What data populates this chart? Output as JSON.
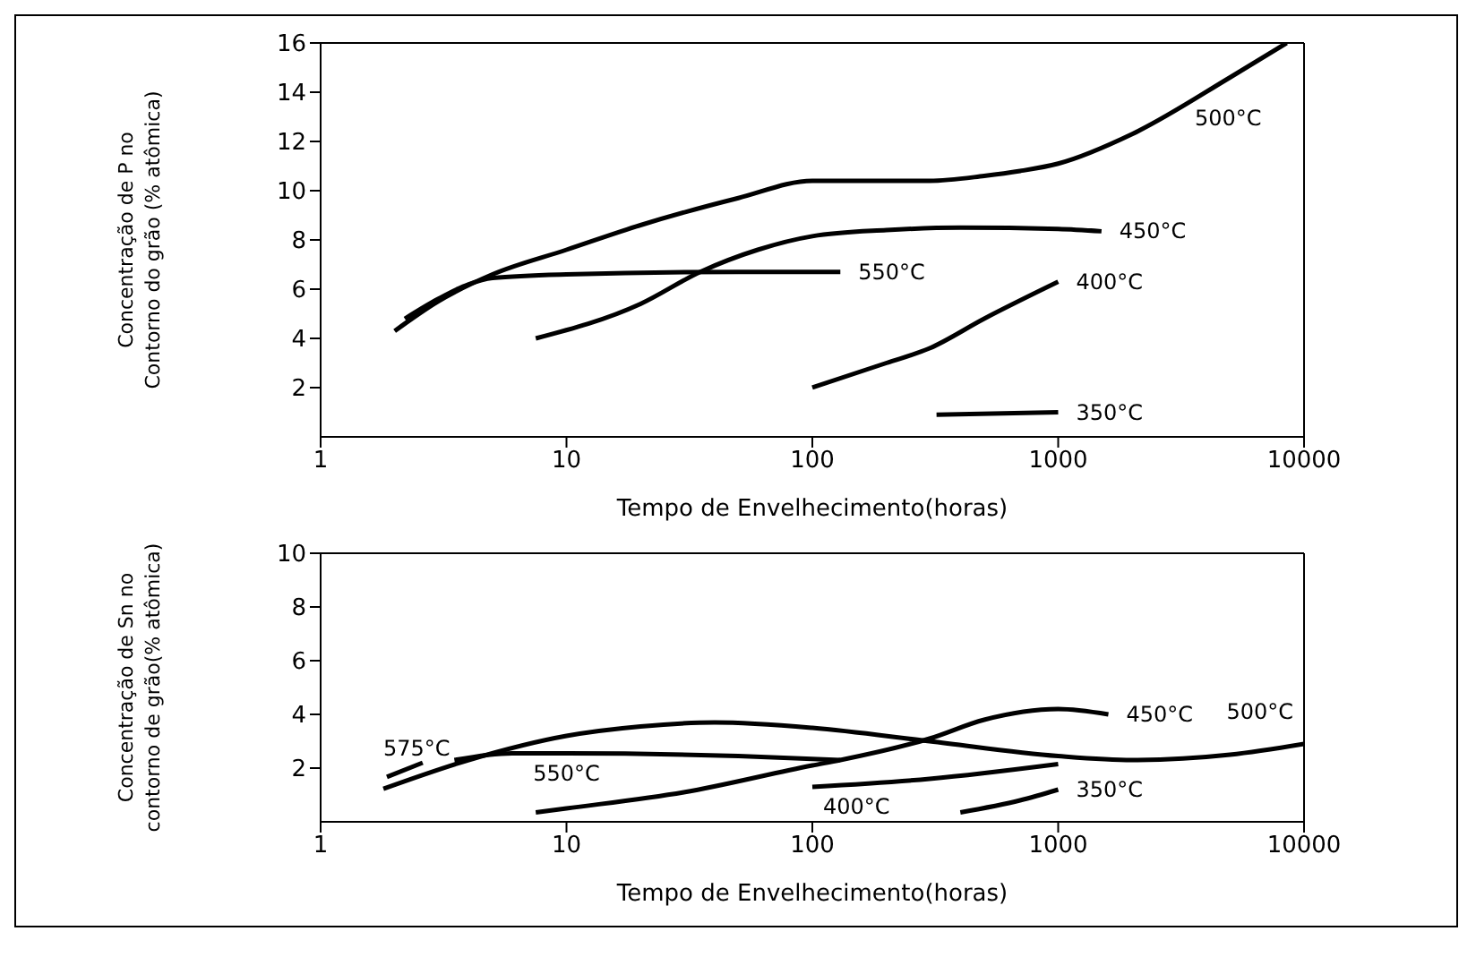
{
  "chart_data": [
    {
      "type": "line",
      "xlabel": "Tempo de Envelhecimento(horas)",
      "ylabel": "Concentração de P no\nContorno do grão (% atômica)",
      "log": "x",
      "xlim": [
        1,
        10000
      ],
      "xticks": [
        1,
        10,
        100,
        1000,
        10000
      ],
      "ylim": [
        0,
        16
      ],
      "yticks": [
        2,
        4,
        6,
        8,
        10,
        12,
        14,
        16
      ],
      "legend": false,
      "marker": "none",
      "line_style": "solid",
      "series": [
        {
          "name": "500°C",
          "color": "#000000",
          "x": [
            2,
            3,
            5,
            10,
            20,
            50,
            100,
            200,
            300,
            500,
            700,
            1000,
            2000,
            5000,
            8500
          ],
          "values": [
            4.3,
            5.5,
            6.6,
            7.6,
            8.6,
            9.7,
            10.4,
            10.4,
            10.4,
            10.6,
            10.8,
            11.1,
            12.3,
            14.6,
            16
          ]
        },
        {
          "name": "450°C",
          "color": "#000000",
          "x": [
            7.5,
            20,
            35,
            60,
            100,
            200,
            400,
            1000,
            1500
          ],
          "values": [
            4.0,
            5.4,
            6.7,
            7.6,
            8.15,
            8.4,
            8.5,
            8.45,
            8.35
          ]
        },
        {
          "name": "550°C",
          "color": "#000000",
          "x": [
            2.2,
            3,
            4,
            5,
            10,
            50,
            130
          ],
          "values": [
            4.8,
            5.6,
            6.2,
            6.45,
            6.6,
            6.7,
            6.7
          ]
        },
        {
          "name": "400°C",
          "color": "#000000",
          "x": [
            100,
            200,
            300,
            500,
            1000
          ],
          "values": [
            2.0,
            3.0,
            3.6,
            4.8,
            6.3
          ]
        },
        {
          "name": "350°C",
          "color": "#000000",
          "x": [
            320,
            1000
          ],
          "values": [
            0.9,
            1.0
          ]
        }
      ]
    },
    {
      "type": "line",
      "xlabel": "Tempo de Envelhecimento(horas)",
      "ylabel": "Concentração de Sn no\ncontorno de grão(% atômica)",
      "log": "x",
      "xlim": [
        1,
        10000
      ],
      "xticks": [
        1,
        10,
        100,
        1000,
        10000
      ],
      "ylim": [
        0,
        10
      ],
      "yticks": [
        2,
        4,
        6,
        8,
        10
      ],
      "legend": false,
      "marker": "none",
      "line_style": "solid",
      "series": [
        {
          "name": "575°C",
          "color": "#000000",
          "x": [
            1.86,
            2.6
          ],
          "values": [
            1.67,
            2.2
          ]
        },
        {
          "name": "550°C",
          "color": "#000000",
          "x": [
            3.5,
            6,
            10,
            50,
            130
          ],
          "values": [
            2.3,
            2.55,
            2.55,
            2.45,
            2.3
          ]
        },
        {
          "name": "450°C",
          "color": "#000000",
          "x": [
            7.5,
            10,
            30,
            100,
            130,
            300,
            500,
            1000,
            1600
          ],
          "values": [
            0.35,
            0.5,
            1.1,
            2.1,
            2.3,
            3.1,
            3.8,
            4.2,
            4.0
          ]
        },
        {
          "name": "400°C",
          "color": "#000000",
          "x": [
            100,
            300,
            1000
          ],
          "values": [
            1.3,
            1.6,
            2.15
          ]
        },
        {
          "name": "350°C",
          "color": "#000000",
          "x": [
            400,
            700,
            1000
          ],
          "values": [
            0.35,
            0.8,
            1.2
          ]
        },
        {
          "name": "500°C",
          "color": "#000000",
          "x": [
            1.8,
            4,
            10,
            20,
            40,
            100,
            300,
            1000,
            2000,
            5000,
            10000
          ],
          "values": [
            1.23,
            2.3,
            3.2,
            3.55,
            3.7,
            3.5,
            3.0,
            2.45,
            2.3,
            2.5,
            2.9
          ]
        }
      ]
    }
  ]
}
